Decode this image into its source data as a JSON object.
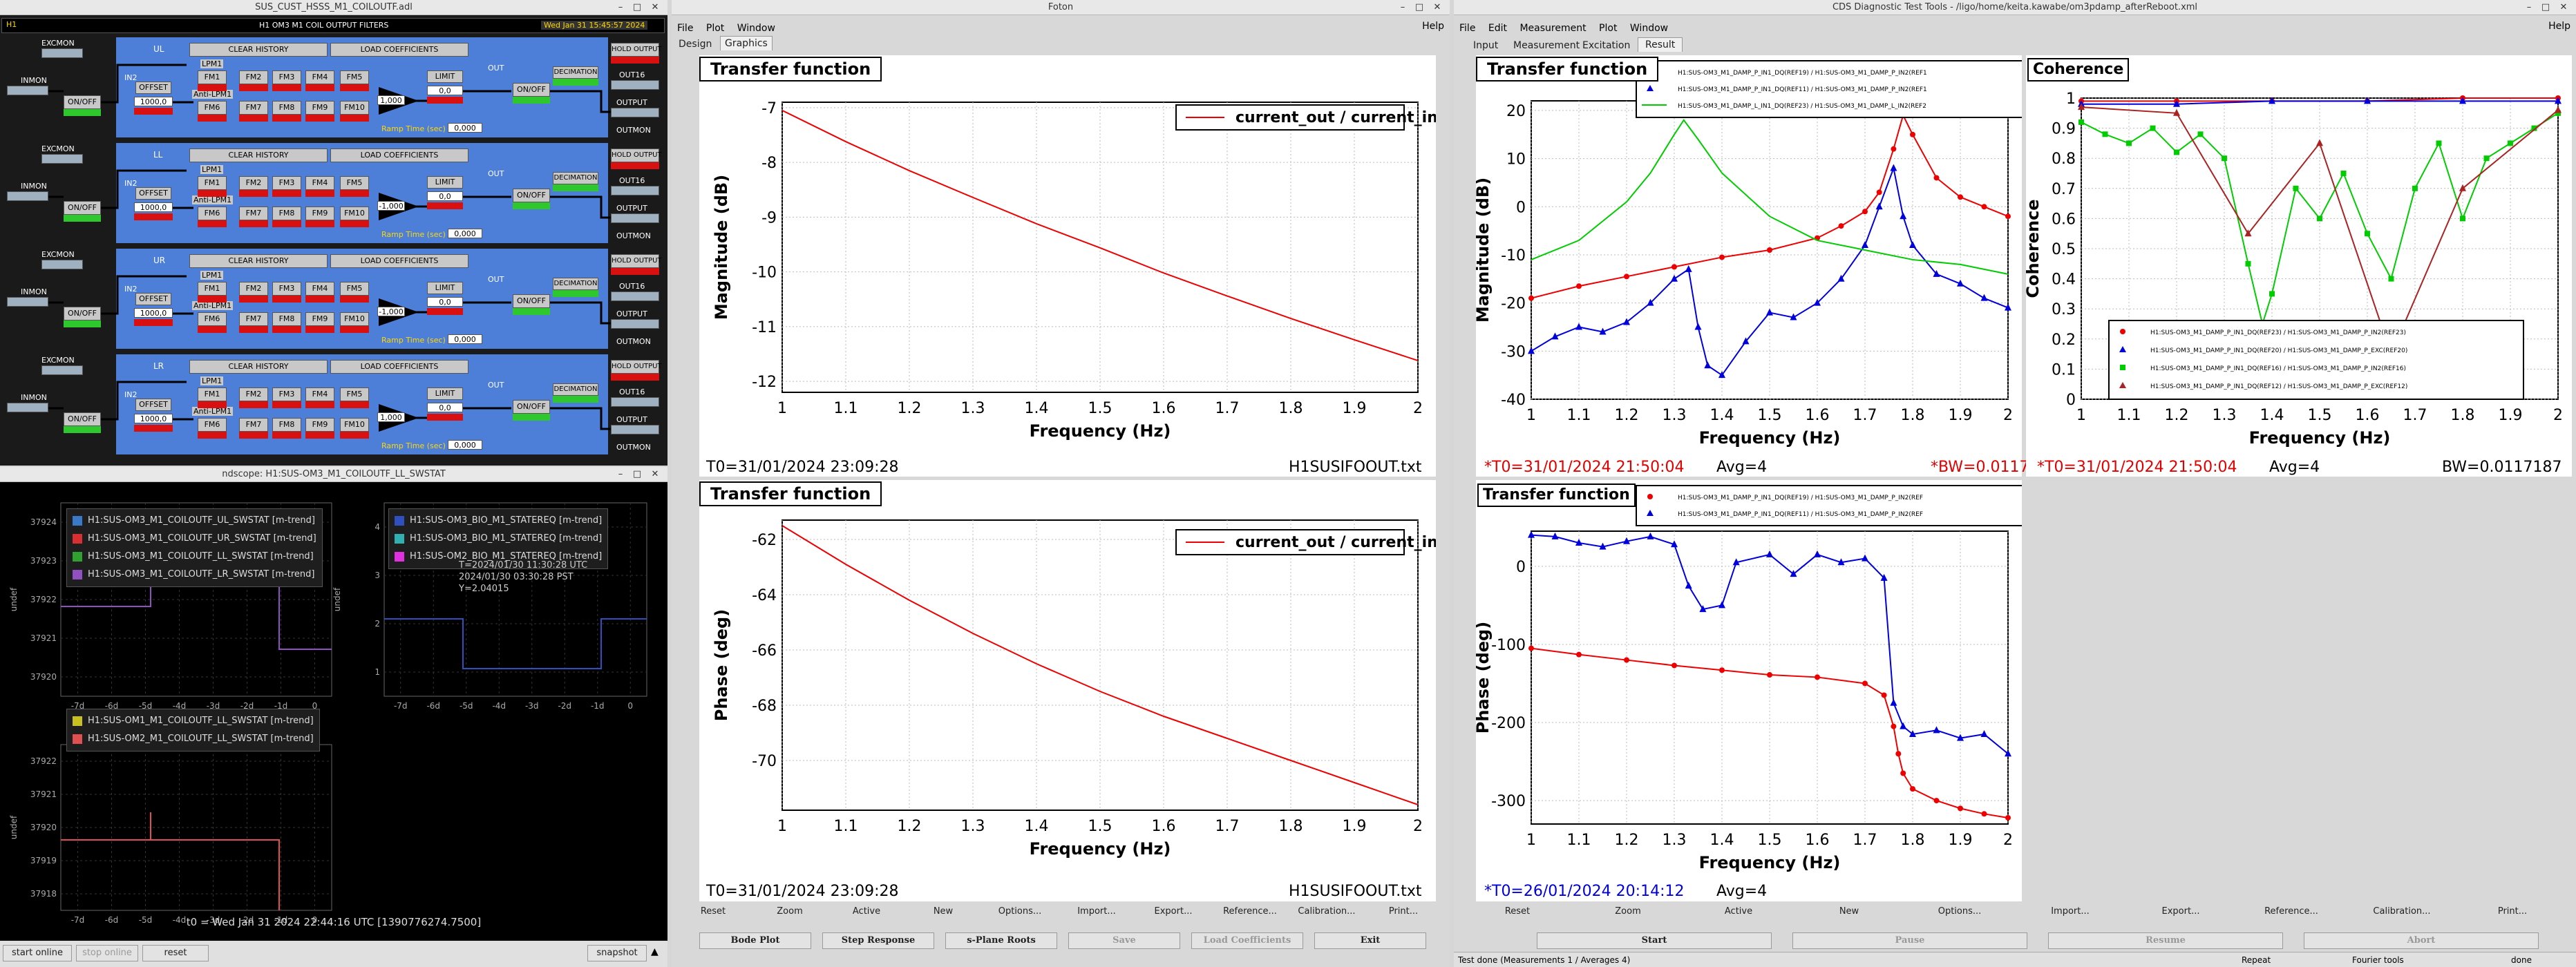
{
  "medm": {
    "title": "SUS_CUST_HSSS_M1_COILOUTF.adl",
    "header_left": "H1 OM3 M1 COIL OUTPUT FILTERS",
    "header_time": "Wed Jan 31 15:45:57 2024",
    "header_tag": "H1",
    "rows": [
      {
        "chan": "UL",
        "exc": "EXCMON",
        "inmon": "INMON",
        "clear": "CLEAR HISTORY",
        "load": "LOAD COEFFICIENTS",
        "fm": [
          "FM1",
          "FM2",
          "FM3",
          "FM4",
          "FM5",
          "FM6",
          "FM7",
          "FM8",
          "FM9",
          "FM10"
        ],
        "offset": "OFFSET",
        "offset_val": "1000,0",
        "limit": "LIMIT",
        "limit_val": "0,0",
        "gain": "1,000",
        "ramp": "Ramp Time (sec)",
        "ramp_val": "0,000",
        "onoff": "ON/OFF",
        "dec": "DECIMATION",
        "hold": "HOLD OUTPUT",
        "outmon": "OUTMON",
        "out16": "OUT16",
        "output": "OUTPUT",
        "out": "OUT",
        "lpm": "LPM1",
        "antilpm": "Anti-LPM1",
        "in2": "IN2"
      },
      {
        "chan": "LL",
        "exc": "EXCMON",
        "inmon": "INMON",
        "clear": "CLEAR HISTORY",
        "load": "LOAD COEFFICIENTS",
        "fm": [
          "FM1",
          "FM2",
          "FM3",
          "FM4",
          "FM5",
          "FM6",
          "FM7",
          "FM8",
          "FM9",
          "FM10"
        ],
        "offset": "OFFSET",
        "offset_val": "1000,0",
        "limit": "LIMIT",
        "limit_val": "0,0",
        "gain": "-1,000",
        "ramp": "Ramp Time (sec)",
        "ramp_val": "0,000",
        "onoff": "ON/OFF",
        "dec": "DECIMATION",
        "hold": "HOLD OUTPUT",
        "outmon": "OUTMON",
        "out16": "OUT16",
        "output": "OUTPUT",
        "out": "OUT",
        "lpm": "LPM1",
        "antilpm": "Anti-LPM1",
        "in2": "IN2"
      },
      {
        "chan": "UR",
        "exc": "EXCMON",
        "inmon": "INMON",
        "clear": "CLEAR HISTORY",
        "load": "LOAD COEFFICIENTS",
        "fm": [
          "FM1",
          "FM2",
          "FM3",
          "FM4",
          "FM5",
          "FM6",
          "FM7",
          "FM8",
          "FM9",
          "FM10"
        ],
        "offset": "OFFSET",
        "offset_val": "1000,0",
        "limit": "LIMIT",
        "limit_val": "0,0",
        "gain": "-1,000",
        "ramp": "Ramp Time (sec)",
        "ramp_val": "0,000",
        "onoff": "ON/OFF",
        "dec": "DECIMATION",
        "hold": "HOLD OUTPUT",
        "outmon": "OUTMON",
        "out16": "OUT16",
        "output": "OUTPUT",
        "out": "OUT",
        "lpm": "LPM1",
        "antilpm": "Anti-LPM1",
        "in2": "IN2"
      },
      {
        "chan": "LR",
        "exc": "EXCMON",
        "inmon": "INMON",
        "clear": "CLEAR HISTORY",
        "load": "LOAD COEFFICIENTS",
        "fm": [
          "FM1",
          "FM2",
          "FM3",
          "FM4",
          "FM5",
          "FM6",
          "FM7",
          "FM8",
          "FM9",
          "FM10"
        ],
        "offset": "OFFSET",
        "offset_val": "1000,0",
        "limit": "LIMIT",
        "limit_val": "0,0",
        "gain": "1,000",
        "ramp": "Ramp Time (sec)",
        "ramp_val": "0,000",
        "onoff": "ON/OFF",
        "dec": "DECIMATION",
        "hold": "HOLD OUTPUT",
        "outmon": "OUTMON",
        "out16": "OUT16",
        "output": "OUTPUT",
        "out": "OUT",
        "lpm": "LPM1",
        "antilpm": "Anti-LPM1",
        "in2": "IN2"
      }
    ]
  },
  "ndscope": {
    "title": "ndscope: H1:SUS-OM3_M1_COILOUTF_LL_SWSTAT",
    "plot1": {
      "legend": [
        {
          "label": "H1:SUS-OM3_M1_COILOUTF_UL_SWSTAT [m-trend]",
          "color": "#3a78c8"
        },
        {
          "label": "H1:SUS-OM3_M1_COILOUTF_UR_SWSTAT [m-trend]",
          "color": "#d83030"
        },
        {
          "label": "H1:SUS-OM3_M1_COILOUTF_LL_SWSTAT [m-trend]",
          "color": "#30a030"
        },
        {
          "label": "H1:SUS-OM3_M1_COILOUTF_LR_SWSTAT [m-trend]",
          "color": "#9050c0"
        }
      ],
      "yticks": [
        "37924",
        "37923",
        "37922",
        "37921",
        "37920"
      ],
      "ylabel": "undef",
      "xticks": [
        "-7d",
        "-6d",
        "-5d",
        "-4d",
        "-3d",
        "-2d",
        "-1d",
        "0"
      ]
    },
    "plot2": {
      "legend": [
        {
          "label": "H1:SUS-OM3_BIO_M1_STATEREQ [m-trend]",
          "color": "#3050c0"
        },
        {
          "label": "H1:SUS-OM3_BIO_M1_STATEREQ [m-trend]",
          "color": "#30b0b0"
        },
        {
          "label": "H1:SUS-OM2_BIO_M1_STATEREQ [m-trend]",
          "color": "#e030e0"
        }
      ],
      "cursor": [
        "T=2024/01/30 11:30:28 UTC",
        "2024/01/30 03:30:28 PST",
        "Y=2.04015"
      ],
      "yticks": [
        "4",
        "3",
        "2",
        "1"
      ],
      "ylabel": "undef",
      "xticks": [
        "-7d",
        "-6d",
        "-5d",
        "-4d",
        "-3d",
        "-2d",
        "-1d",
        "0"
      ]
    },
    "plot3": {
      "legend": [
        {
          "label": "H1:SUS-OM1_M1_COILOUTF_LL_SWSTAT [m-trend]",
          "color": "#c8c020"
        },
        {
          "label": "H1:SUS-OM2_M1_COILOUTF_LL_SWSTAT [m-trend]",
          "color": "#e05050"
        }
      ],
      "yticks": [
        "37922",
        "37921",
        "37920",
        "37919",
        "37918"
      ],
      "ylabel": "undef",
      "xticks": [
        "-7d",
        "-6d",
        "-5d",
        "-4d",
        "-3d",
        "-2d",
        "-1d",
        "0"
      ]
    },
    "t0": "t0 = Wed Jan 31 2024 22:44:16 UTC [1390776274.7500]",
    "buttons": {
      "start": "start online",
      "stop": "stop online",
      "reset": "reset",
      "snapshot": "snapshot"
    }
  },
  "foton": {
    "title": "Foton",
    "menu": [
      "File",
      "Plot",
      "Window"
    ],
    "help": "Help",
    "tabs": [
      "Design",
      "Graphics"
    ],
    "plot_title": "Transfer function",
    "legend": "current_out / current_in",
    "xlabel": "Frequency (Hz)",
    "ylabel_mag": "Magnitude (dB)",
    "ylabel_phase": "Phase (deg)",
    "t0": "T0=31/01/2024 23:09:28",
    "file": "H1SUSIFOOUT.txt",
    "buttons": [
      "Reset",
      "Zoom",
      "Active",
      "New",
      "Options...",
      "Import...",
      "Export...",
      "Reference...",
      "Calibration...",
      "Print..."
    ],
    "bottom_buttons": [
      "Bode Plot",
      "Step Response",
      "s-Plane Roots",
      "Save",
      "Load Coefficients",
      "Exit"
    ]
  },
  "dtt": {
    "title": "CDS Diagnostic Test Tools - /ligo/home/keita.kawabe/om3pdamp_afterReboot.xml",
    "menu": [
      "File",
      "Edit",
      "Measurement",
      "Plot",
      "Window"
    ],
    "help": "Help",
    "tabs": [
      "Input",
      "Measurement",
      "Excitation",
      "Result"
    ],
    "mag_title": "Transfer function",
    "coh_title": "Coherence",
    "phase_title": "Transfer function",
    "xlabel": "Frequency (Hz)",
    "ylabel_mag": "Magnitude (dB)",
    "ylabel_coh": "Coherence",
    "ylabel_phase": "Phase (deg)",
    "mag_legend": [
      "H1:SUS-OM3_M1_DAMP_P_IN1_DQ(REF19) / H1:SUS-OM3_M1_DAMP_P_IN2(REF1",
      "H1:SUS-OM3_M1_DAMP_P_IN1_DQ(REF11) / H1:SUS-OM3_M1_DAMP_P_IN2(REF1",
      "H1:SUS-OM3_M1_DAMP_L_IN1_DQ(REF23) / H1:SUS-OM3_M1_DAMP_L_IN2(REF2"
    ],
    "coh_legend": [
      "H1:SUS-OM3_M1_DAMP_P_IN1_DQ(REF23) / H1:SUS-OM3_M1_DAMP_P_IN2(REF23)",
      "H1:SUS-OM3_M1_DAMP_P_IN1_DQ(REF20) / H1:SUS-OM3_M1_DAMP_P_EXC(REF20)",
      "H1:SUS-OM3_M1_DAMP_P_IN1_DQ(REF16) / H1:SUS-OM3_M1_DAMP_P_IN2(REF16)",
      "H1:SUS-OM3_M1_DAMP_P_IN1_DQ(REF12) / H1:SUS-OM3_M1_DAMP_P_EXC(REF12)"
    ],
    "phase_legend": [
      "H1:SUS-OM3_M1_DAMP_P_IN1_DQ(REF19) / H1:SUS-OM3_M1_DAMP_P_IN2(REF",
      "H1:SUS-OM3_M1_DAMP_P_IN1_DQ(REF11) / H1:SUS-OM3_M1_DAMP_P_IN2(REF"
    ],
    "t0_mag": "*T0=31/01/2024 21:50:04",
    "avg_mag": "Avg=4",
    "bw_mag": "*BW=0.0117187",
    "t0_coh": "*T0=31/01/2024 21:50:04",
    "avg_coh": "Avg=4",
    "bw_coh": "BW=0.0117187",
    "t0_phase": "*T0=26/01/2024 20:14:12",
    "avg_phase": "Avg=4",
    "buttons": [
      "Reset",
      "Zoom",
      "Active",
      "New",
      "Options...",
      "Import...",
      "Export...",
      "Reference...",
      "Calibration...",
      "Print..."
    ],
    "bottom_buttons": [
      "Start",
      "Pause",
      "Resume",
      "Abort"
    ],
    "status": [
      "Test done (Measurements 1 / Averages 4)",
      "Repeat",
      "Fourier tools",
      "done"
    ],
    "colors": {
      "red": "#ee0000",
      "blue": "#0000dd",
      "green": "#00cc00",
      "darkred": "#aa2222"
    }
  },
  "chart_data": [
    {
      "type": "line",
      "title": "Transfer function",
      "xlabel": "Frequency (Hz)",
      "ylabel": "Magnitude (dB)",
      "xlim": [
        1,
        2
      ],
      "ylim": [
        -12.2,
        -6.9
      ],
      "series": [
        {
          "name": "current_out / current_in",
          "color": "#ee0000",
          "x": [
            1.0,
            1.1,
            1.2,
            1.3,
            1.4,
            1.5,
            1.6,
            1.7,
            1.8,
            1.9,
            2.0
          ],
          "values": [
            -7.05,
            -7.62,
            -8.15,
            -8.64,
            -9.12,
            -9.56,
            -10.02,
            -10.44,
            -10.85,
            -11.24,
            -11.62
          ]
        }
      ]
    },
    {
      "type": "line",
      "title": "Transfer function",
      "xlabel": "Frequency (Hz)",
      "ylabel": "Phase (deg)",
      "xlim": [
        1,
        2
      ],
      "ylim": [
        -71.8,
        -61.3
      ],
      "series": [
        {
          "name": "current_out / current_in",
          "color": "#ee0000",
          "x": [
            1.0,
            1.1,
            1.2,
            1.3,
            1.4,
            1.5,
            1.6,
            1.7,
            1.8,
            1.9,
            2.0
          ],
          "values": [
            -61.5,
            -62.9,
            -64.2,
            -65.4,
            -66.5,
            -67.5,
            -68.4,
            -69.2,
            -70.0,
            -70.8,
            -71.6
          ]
        }
      ]
    },
    {
      "type": "line",
      "title": "Transfer function",
      "xlabel": "Frequency (Hz)",
      "ylabel": "Magnitude (dB)",
      "xlim": [
        1,
        2
      ],
      "ylim": [
        -40,
        22
      ],
      "series": [
        {
          "color": "#ee0000",
          "x": [
            1.0,
            1.1,
            1.2,
            1.3,
            1.4,
            1.5,
            1.6,
            1.65,
            1.7,
            1.73,
            1.76,
            1.78,
            1.8,
            1.85,
            1.9,
            1.95,
            2.0
          ],
          "values": [
            -19,
            -16.5,
            -14.5,
            -12.5,
            -10.5,
            -9,
            -6.5,
            -4,
            -1,
            3,
            12,
            19,
            15,
            6,
            2,
            0,
            -2
          ]
        },
        {
          "color": "#0000dd",
          "x": [
            1.0,
            1.05,
            1.1,
            1.15,
            1.2,
            1.25,
            1.3,
            1.33,
            1.35,
            1.37,
            1.4,
            1.45,
            1.5,
            1.55,
            1.6,
            1.65,
            1.7,
            1.73,
            1.76,
            1.78,
            1.8,
            1.85,
            1.9,
            1.95,
            2.0
          ],
          "values": [
            -30,
            -27,
            -25,
            -26,
            -24,
            -20,
            -15,
            -13,
            -25,
            -33,
            -35,
            -28,
            -22,
            -23,
            -20,
            -15,
            -8,
            0,
            8,
            -2,
            -8,
            -14,
            -16,
            -19,
            -21
          ]
        },
        {
          "color": "#00cc00",
          "x": [
            1.0,
            1.1,
            1.2,
            1.25,
            1.3,
            1.32,
            1.35,
            1.4,
            1.5,
            1.6,
            1.7,
            1.8,
            1.9,
            2.0
          ],
          "values": [
            -11,
            -7,
            1,
            7,
            15,
            18,
            14,
            7,
            -2,
            -7,
            -9,
            -11,
            -12,
            -14
          ]
        }
      ]
    },
    {
      "type": "scatter",
      "title": "Coherence",
      "xlabel": "Frequency (Hz)",
      "ylabel": "Coherence",
      "xlim": [
        1,
        2
      ],
      "ylim": [
        0,
        1
      ],
      "series": [
        {
          "color": "#ee0000",
          "x": [
            1.0,
            1.2,
            1.4,
            1.6,
            1.8,
            2.0
          ],
          "values": [
            0.99,
            0.99,
            0.99,
            0.99,
            1.0,
            1.0
          ]
        },
        {
          "color": "#0000dd",
          "x": [
            1.0,
            1.2,
            1.4,
            1.6,
            1.8,
            2.0
          ],
          "values": [
            0.98,
            0.98,
            0.99,
            0.99,
            0.99,
            0.99
          ]
        },
        {
          "color": "#00cc00",
          "x": [
            1.0,
            1.05,
            1.1,
            1.15,
            1.2,
            1.25,
            1.3,
            1.35,
            1.38,
            1.4,
            1.45,
            1.5,
            1.55,
            1.6,
            1.65,
            1.7,
            1.75,
            1.8,
            1.85,
            1.9,
            1.95,
            2.0
          ],
          "values": [
            0.92,
            0.88,
            0.85,
            0.9,
            0.82,
            0.88,
            0.8,
            0.45,
            0.25,
            0.35,
            0.7,
            0.6,
            0.75,
            0.55,
            0.4,
            0.7,
            0.85,
            0.6,
            0.8,
            0.85,
            0.9,
            0.95
          ]
        },
        {
          "color": "#aa2222",
          "x": [
            1.0,
            1.2,
            1.35,
            1.5,
            1.65,
            1.8,
            2.0
          ],
          "values": [
            0.97,
            0.95,
            0.55,
            0.85,
            0.15,
            0.7,
            0.96
          ]
        }
      ]
    },
    {
      "type": "line",
      "title": "Transfer function",
      "xlabel": "Frequency (Hz)",
      "ylabel": "Phase (deg)",
      "xlim": [
        1,
        2
      ],
      "ylim": [
        -330,
        45
      ],
      "series": [
        {
          "color": "#ee0000",
          "x": [
            1.0,
            1.1,
            1.2,
            1.3,
            1.4,
            1.5,
            1.6,
            1.7,
            1.74,
            1.76,
            1.77,
            1.78,
            1.8,
            1.85,
            1.9,
            1.95,
            2.0
          ],
          "values": [
            -105,
            -113,
            -120,
            -127,
            -133,
            -139,
            -142,
            -150,
            -165,
            -205,
            -240,
            -265,
            -285,
            -300,
            -310,
            -317,
            -322
          ]
        },
        {
          "color": "#0000dd",
          "x": [
            1.0,
            1.05,
            1.1,
            1.15,
            1.2,
            1.25,
            1.3,
            1.33,
            1.36,
            1.4,
            1.43,
            1.5,
            1.55,
            1.6,
            1.65,
            1.7,
            1.74,
            1.76,
            1.78,
            1.8,
            1.85,
            1.9,
            1.95,
            2.0
          ],
          "values": [
            40,
            38,
            30,
            25,
            32,
            38,
            28,
            -25,
            -55,
            -50,
            5,
            15,
            -10,
            15,
            5,
            10,
            -15,
            -175,
            -205,
            -215,
            -210,
            -220,
            -215,
            -240
          ]
        }
      ]
    }
  ]
}
